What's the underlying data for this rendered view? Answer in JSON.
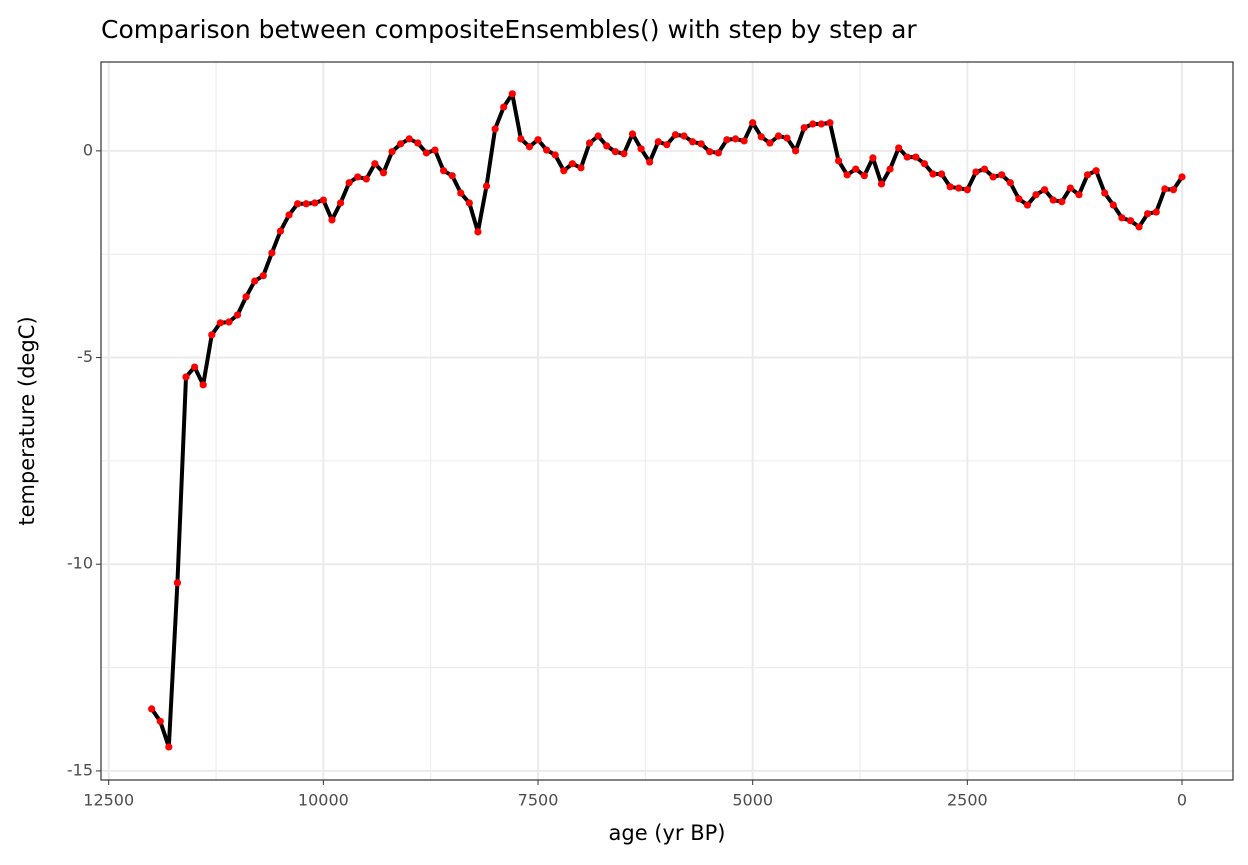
{
  "chart_data": {
    "type": "line",
    "title": "Comparison between compositeEnsembles() with step by step ar",
    "x_label": "age (yr BP)",
    "y_label": "temperature (degC)",
    "x": [
      12000,
      11900,
      11800,
      11700,
      11600,
      11500,
      11400,
      11300,
      11200,
      11100,
      11000,
      10900,
      10800,
      10700,
      10600,
      10500,
      10400,
      10300,
      10200,
      10100,
      10000,
      9900,
      9800,
      9700,
      9600,
      9500,
      9400,
      9300,
      9200,
      9100,
      9000,
      8900,
      8800,
      8700,
      8600,
      8500,
      8400,
      8300,
      8200,
      8100,
      8000,
      7900,
      7800,
      7700,
      7600,
      7500,
      7400,
      7300,
      7200,
      7100,
      7000,
      6900,
      6800,
      6700,
      6600,
      6500,
      6400,
      6300,
      6200,
      6100,
      6000,
      5900,
      5800,
      5700,
      5600,
      5500,
      5400,
      5300,
      5200,
      5100,
      5000,
      4900,
      4800,
      4700,
      4600,
      4500,
      4400,
      4300,
      4200,
      4100,
      4000,
      3900,
      3800,
      3700,
      3600,
      3500,
      3400,
      3300,
      3200,
      3100,
      3000,
      2900,
      2800,
      2700,
      2600,
      2500,
      2400,
      2300,
      2200,
      2100,
      2000,
      1900,
      1800,
      1700,
      1600,
      1500,
      1400,
      1300,
      1200,
      1100,
      1000,
      900,
      800,
      700,
      600,
      500,
      400,
      300,
      200,
      100,
      0
    ],
    "series": [
      {
        "line_color": "#000000",
        "color": "#ff0000",
        "values": [
          -13.5,
          -13.8,
          -14.42,
          -10.45,
          -5.47,
          -5.23,
          -5.66,
          -4.45,
          -4.16,
          -4.14,
          -3.97,
          -3.53,
          -3.15,
          -3.02,
          -2.47,
          -1.94,
          -1.55,
          -1.28,
          -1.28,
          -1.26,
          -1.19,
          -1.67,
          -1.26,
          -0.77,
          -0.63,
          -0.68,
          -0.31,
          -0.53,
          -0.02,
          0.17,
          0.29,
          0.19,
          -0.05,
          0.02,
          -0.48,
          -0.6,
          -1.02,
          -1.26,
          -1.96,
          -0.85,
          0.53,
          1.06,
          1.38,
          0.29,
          0.1,
          0.27,
          0.02,
          -0.1,
          -0.48,
          -0.31,
          -0.41,
          0.19,
          0.36,
          0.12,
          -0.02,
          -0.07,
          0.41,
          0.05,
          -0.27,
          0.22,
          0.15,
          0.39,
          0.36,
          0.22,
          0.17,
          -0.02,
          -0.05,
          0.27,
          0.29,
          0.24,
          0.68,
          0.34,
          0.19,
          0.36,
          0.31,
          0,
          0.56,
          0.65,
          0.65,
          0.68,
          -0.24,
          -0.58,
          -0.44,
          -0.6,
          -0.17,
          -0.8,
          -0.44,
          0.07,
          -0.15,
          -0.15,
          -0.31,
          -0.56,
          -0.56,
          -0.87,
          -0.9,
          -0.94,
          -0.51,
          -0.44,
          -0.63,
          -0.58,
          -0.77,
          -1.16,
          -1.31,
          -1.06,
          -0.94,
          -1.19,
          -1.23,
          -0.9,
          -1.06,
          -0.58,
          -0.48,
          -1.02,
          -1.31,
          -1.62,
          -1.69,
          -1.84,
          -1.52,
          -1.48,
          -0.92,
          -0.94,
          -0.63
        ]
      }
    ],
    "xlim": [
      12590,
      -594
    ],
    "xticks": [
      12500,
      10000,
      7500,
      5000,
      2500,
      0
    ],
    "ylim": [
      -15.22,
      2.15
    ],
    "yticks": [
      -15,
      -10,
      -5,
      0
    ],
    "grid": true
  }
}
